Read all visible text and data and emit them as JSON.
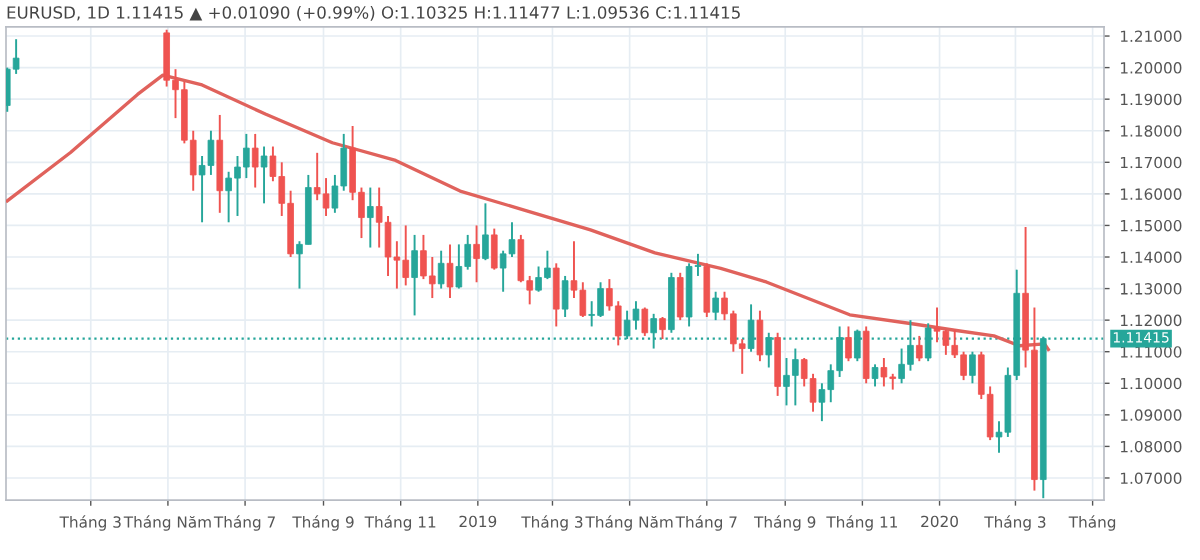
{
  "chart_data": {
    "type": "candlestick",
    "title": "EURUSD, 1D 1.11415 ▲ +0.01090 (+0.99%) O:1.10325 H:1.11477 L:1.09536 C:1.11415",
    "colors": [
      "#26a69a",
      "#26a69a",
      "#ef5350",
      "#ef5350",
      "#ef5350",
      "#ef5350",
      "#26a69a",
      "#26a69a",
      "#ef5350",
      "#26a69a",
      "#26a69a",
      "#26a69a",
      "#ef5350",
      "#26a69a",
      "#ef5350",
      "#ef5350",
      "#ef5350",
      "#26a69a",
      "#26a69a",
      "#ef5350",
      "#ef5350",
      "#26a69a",
      "#26a69a",
      "#ef5350",
      "#ef5350",
      "#26a69a",
      "#ef5350",
      "#ef5350",
      "#ef5350",
      "#ef5350",
      "#26a69a",
      "#ef5350",
      "#ef5350",
      "#26a69a",
      "#ef5350",
      "#26a69a",
      "#26a69a",
      "#ef5350",
      "#26a69a",
      "#ef5350",
      "#26a69a",
      "#26a69a",
      "#ef5350",
      "#ef5350",
      "#26a69a",
      "#26a69a",
      "#ef5350",
      "#26a69a",
      "#ef5350",
      "#ef5350",
      "#26a69a",
      "#26a69a",
      "#ef5350",
      "#ef5350",
      "#26a69a",
      "#26a69a",
      "#ef5350",
      "#26a69a",
      "#ef5350",
      "#26a69a",
      "#ef5350",
      "#26a69a",
      "#26a69a",
      "#ef5350",
      "#26a69a",
      "#ef5350",
      "#ef5350",
      "#ef5350",
      "#26a69a",
      "#ef5350",
      "#26a69a",
      "#ef5350",
      "#26a69a",
      "#26a69a",
      "#ef5350",
      "#ef5350",
      "#26a69a",
      "#26a69a",
      "#26a69a",
      "#ef5350",
      "#26a69a",
      "#ef5350",
      "#26a69a",
      "#ef5350",
      "#ef5350",
      "#26a69a",
      "#26a69a",
      "#ef5350",
      "#26a69a",
      "#ef5350",
      "#ef5350",
      "#ef5350",
      "#ef5350",
      "#26a69a",
      "#ef5350",
      "#ef5350",
      "#26a69a",
      "#26a69a",
      "#26a69a",
      "#ef5350",
      "#ef5350",
      "#26a69a"
    ],
    "x": [
      "2017-12-25",
      "2018-01-01",
      "2018-04-30",
      "2018-05-07",
      "2018-05-14",
      "2018-05-21",
      "2018-05-28",
      "2018-06-04",
      "2018-06-11",
      "2018-06-18",
      "2018-06-25",
      "2018-07-02",
      "2018-07-09",
      "2018-07-16",
      "2018-07-23",
      "2018-07-30",
      "2018-08-06",
      "2018-08-13",
      "2018-08-20",
      "2018-08-27",
      "2018-09-03",
      "2018-09-10",
      "2018-09-17",
      "2018-09-24",
      "2018-10-01",
      "2018-10-08",
      "2018-10-15",
      "2018-10-22",
      "2018-10-29",
      "2018-11-05",
      "2018-11-12",
      "2018-11-19",
      "2018-11-26",
      "2018-12-03",
      "2018-12-10",
      "2018-12-17",
      "2018-12-24",
      "2018-12-31",
      "2019-01-07",
      "2019-01-14",
      "2019-01-21",
      "2019-01-28",
      "2019-02-04",
      "2019-02-11",
      "2019-02-18",
      "2019-02-25",
      "2019-03-04",
      "2019-03-11",
      "2019-03-18",
      "2019-03-25",
      "2019-04-01",
      "2019-04-08",
      "2019-04-15",
      "2019-04-22",
      "2019-04-29",
      "2019-05-06",
      "2019-05-13",
      "2019-05-20",
      "2019-05-27",
      "2019-06-03",
      "2019-06-10",
      "2019-06-17",
      "2019-06-24",
      "2019-07-01",
      "2019-07-08",
      "2019-07-15",
      "2019-07-22",
      "2019-07-29",
      "2019-08-05",
      "2019-08-12",
      "2019-08-19",
      "2019-08-26",
      "2019-09-02",
      "2019-09-09",
      "2019-09-16",
      "2019-09-23",
      "2019-09-30",
      "2019-10-07",
      "2019-10-14",
      "2019-10-21",
      "2019-10-28",
      "2019-11-04",
      "2019-11-11",
      "2019-11-18",
      "2019-11-25",
      "2019-12-02",
      "2019-12-09",
      "2019-12-16",
      "2019-12-23",
      "2019-12-30",
      "2020-01-06",
      "2020-01-13",
      "2020-01-20",
      "2020-01-27",
      "2020-02-03",
      "2020-02-10",
      "2020-02-17",
      "2020-02-24",
      "2020-03-02",
      "2020-03-09",
      "2020-03-16",
      "2020-03-23"
    ],
    "ohlc": [
      [
        1.188,
        1.2,
        1.186,
        1.1995
      ],
      [
        1.1995,
        1.209,
        1.198,
        1.203
      ],
      [
        1.211,
        1.212,
        1.194,
        1.196
      ],
      [
        1.196,
        1.1995,
        1.184,
        1.193
      ],
      [
        1.193,
        1.1955,
        1.176,
        1.177
      ],
      [
        1.177,
        1.18,
        1.161,
        1.166
      ],
      [
        1.166,
        1.172,
        1.151,
        1.169
      ],
      [
        1.169,
        1.18,
        1.166,
        1.177
      ],
      [
        1.177,
        1.185,
        1.154,
        1.161
      ],
      [
        1.161,
        1.167,
        1.151,
        1.165
      ],
      [
        1.165,
        1.172,
        1.153,
        1.1685
      ],
      [
        1.1685,
        1.179,
        1.165,
        1.1745
      ],
      [
        1.1745,
        1.179,
        1.162,
        1.1685
      ],
      [
        1.1685,
        1.175,
        1.157,
        1.172
      ],
      [
        1.172,
        1.175,
        1.164,
        1.1655
      ],
      [
        1.1655,
        1.17,
        1.153,
        1.157
      ],
      [
        1.157,
        1.161,
        1.14,
        1.141
      ],
      [
        1.141,
        1.145,
        1.13,
        1.144
      ],
      [
        1.144,
        1.166,
        1.144,
        1.162
      ],
      [
        1.162,
        1.173,
        1.158,
        1.16
      ],
      [
        1.16,
        1.165,
        1.153,
        1.1555
      ],
      [
        1.1555,
        1.166,
        1.154,
        1.1625
      ],
      [
        1.1625,
        1.179,
        1.161,
        1.1745
      ],
      [
        1.1745,
        1.1815,
        1.158,
        1.1605
      ],
      [
        1.1605,
        1.162,
        1.146,
        1.1525
      ],
      [
        1.1525,
        1.162,
        1.143,
        1.156
      ],
      [
        1.156,
        1.162,
        1.143,
        1.151
      ],
      [
        1.151,
        1.153,
        1.134,
        1.14
      ],
      [
        1.14,
        1.145,
        1.13,
        1.139
      ],
      [
        1.139,
        1.15,
        1.131,
        1.1335
      ],
      [
        1.1335,
        1.147,
        1.1215,
        1.142
      ],
      [
        1.142,
        1.147,
        1.133,
        1.134
      ],
      [
        1.134,
        1.14,
        1.127,
        1.1315
      ],
      [
        1.1315,
        1.142,
        1.13,
        1.138
      ],
      [
        1.138,
        1.144,
        1.127,
        1.1305
      ],
      [
        1.1305,
        1.144,
        1.13,
        1.137
      ],
      [
        1.137,
        1.147,
        1.136,
        1.144
      ],
      [
        1.144,
        1.15,
        1.132,
        1.1395
      ],
      [
        1.1395,
        1.157,
        1.139,
        1.147
      ],
      [
        1.147,
        1.149,
        1.136,
        1.1365
      ],
      [
        1.1365,
        1.142,
        1.129,
        1.141
      ],
      [
        1.141,
        1.151,
        1.14,
        1.1455
      ],
      [
        1.1455,
        1.147,
        1.132,
        1.1325
      ],
      [
        1.1325,
        1.134,
        1.125,
        1.1295
      ],
      [
        1.1295,
        1.137,
        1.129,
        1.1335
      ],
      [
        1.1335,
        1.142,
        1.133,
        1.1365
      ],
      [
        1.1365,
        1.138,
        1.118,
        1.1235
      ],
      [
        1.1235,
        1.134,
        1.121,
        1.1325
      ],
      [
        1.1325,
        1.145,
        1.127,
        1.1295
      ],
      [
        1.1295,
        1.132,
        1.121,
        1.1215
      ],
      [
        1.1215,
        1.126,
        1.118,
        1.1215
      ],
      [
        1.1215,
        1.132,
        1.121,
        1.13
      ],
      [
        1.13,
        1.133,
        1.123,
        1.1245
      ],
      [
        1.1245,
        1.126,
        1.112,
        1.115
      ],
      [
        1.115,
        1.123,
        1.114,
        1.12
      ],
      [
        1.12,
        1.126,
        1.117,
        1.1235
      ],
      [
        1.1235,
        1.124,
        1.115,
        1.116
      ],
      [
        1.116,
        1.122,
        1.111,
        1.1205
      ],
      [
        1.1205,
        1.121,
        1.114,
        1.117
      ],
      [
        1.117,
        1.135,
        1.116,
        1.1335
      ],
      [
        1.1335,
        1.135,
        1.12,
        1.121
      ],
      [
        1.121,
        1.138,
        1.118,
        1.137
      ],
      [
        1.137,
        1.141,
        1.134,
        1.137
      ],
      [
        1.137,
        1.138,
        1.121,
        1.1225
      ],
      [
        1.1225,
        1.129,
        1.12,
        1.127
      ],
      [
        1.127,
        1.129,
        1.12,
        1.122
      ],
      [
        1.122,
        1.123,
        1.11,
        1.1125
      ],
      [
        1.1125,
        1.114,
        1.103,
        1.111
      ],
      [
        1.111,
        1.125,
        1.11,
        1.12
      ],
      [
        1.12,
        1.123,
        1.107,
        1.109
      ],
      [
        1.109,
        1.116,
        1.105,
        1.1145
      ],
      [
        1.1145,
        1.116,
        1.096,
        1.099
      ],
      [
        1.099,
        1.108,
        1.093,
        1.1025
      ],
      [
        1.1025,
        1.111,
        1.093,
        1.1075
      ],
      [
        1.1075,
        1.108,
        1.099,
        1.1015
      ],
      [
        1.1015,
        1.103,
        1.091,
        1.094
      ],
      [
        1.094,
        1.1,
        1.088,
        1.098
      ],
      [
        1.098,
        1.106,
        1.094,
        1.104
      ],
      [
        1.104,
        1.118,
        1.102,
        1.1145
      ],
      [
        1.1145,
        1.118,
        1.107,
        1.108
      ],
      [
        1.108,
        1.117,
        1.107,
        1.1165
      ],
      [
        1.1165,
        1.118,
        1.1,
        1.1015
      ],
      [
        1.1015,
        1.106,
        1.099,
        1.105
      ],
      [
        1.105,
        1.108,
        1.099,
        1.102
      ],
      [
        1.102,
        1.103,
        1.098,
        1.1015
      ],
      [
        1.1015,
        1.111,
        1.1,
        1.106
      ],
      [
        1.106,
        1.12,
        1.104,
        1.112
      ],
      [
        1.112,
        1.115,
        1.107,
        1.108
      ],
      [
        1.108,
        1.119,
        1.107,
        1.1175
      ],
      [
        1.1175,
        1.124,
        1.113,
        1.1165
      ],
      [
        1.1165,
        1.117,
        1.109,
        1.112
      ],
      [
        1.112,
        1.117,
        1.108,
        1.109
      ],
      [
        1.109,
        1.11,
        1.101,
        1.1025
      ],
      [
        1.1025,
        1.11,
        1.1,
        1.109
      ],
      [
        1.109,
        1.11,
        1.095,
        1.0965
      ],
      [
        1.0965,
        1.099,
        1.082,
        1.083
      ],
      [
        1.083,
        1.088,
        1.078,
        1.0845
      ],
      [
        1.0845,
        1.105,
        1.083,
        1.1025
      ],
      [
        1.1025,
        1.136,
        1.101,
        1.1285
      ],
      [
        1.1285,
        1.1495,
        1.105,
        1.1105
      ],
      [
        1.1105,
        1.124,
        1.066,
        1.0695
      ],
      [
        1.0695,
        1.11477,
        1.0636,
        1.11415
      ]
    ],
    "series": [
      {
        "type": "line",
        "color": "#e0625c",
        "x": [
          "2017-12-25",
          "2018-02-13",
          "2018-04-07",
          "2018-04-27",
          "2018-05-28",
          "2018-07-17",
          "2018-09-08",
          "2018-10-28",
          "2018-12-18",
          "2019-02-08",
          "2019-03-31",
          "2019-05-21",
          "2019-07-12",
          "2019-08-17",
          "2019-10-22",
          "2019-12-13",
          "2020-01-13",
          "2020-02-13",
          "2020-03-04",
          "2020-03-24",
          "2020-03-27"
        ],
        "values": [
          1.1578,
          1.1731,
          1.1915,
          1.1976,
          1.1945,
          1.1853,
          1.1762,
          1.1706,
          1.1609,
          1.1547,
          1.1486,
          1.1413,
          1.1364,
          1.1321,
          1.1217,
          1.1187,
          1.1168,
          1.115,
          1.1119,
          1.1125,
          1.1107
        ]
      }
    ],
    "ref_lines": [
      {
        "axis": "y",
        "value": 1.11415,
        "label": "1.11415",
        "color": "#26a69a",
        "line_style": "dotted"
      }
    ],
    "xlim": [
      "2017-12-24",
      "2020-05-10"
    ],
    "xticks": [
      {
        "value": "2018-03-01",
        "label": "Tháng 3"
      },
      {
        "value": "2018-05-01",
        "label": "Tháng Năm"
      },
      {
        "value": "2018-07-01",
        "label": "Tháng 7"
      },
      {
        "value": "2018-09-01",
        "label": "Tháng 9"
      },
      {
        "value": "2018-11-01",
        "label": "Tháng 11"
      },
      {
        "value": "2019-01-01",
        "label": "2019"
      },
      {
        "value": "2019-03-01",
        "label": "Tháng 3"
      },
      {
        "value": "2019-05-01",
        "label": "Tháng Năm"
      },
      {
        "value": "2019-07-01",
        "label": "Tháng 7"
      },
      {
        "value": "2019-09-01",
        "label": "Tháng 9"
      },
      {
        "value": "2019-11-01",
        "label": "Tháng 11"
      },
      {
        "value": "2020-01-01",
        "label": "2020"
      },
      {
        "value": "2020-03-01",
        "label": "Tháng 3"
      },
      {
        "value": "2020-05-01",
        "label": "Tháng"
      }
    ],
    "ylim": [
      1.063,
      1.2129
    ],
    "yticks": [
      {
        "value": 1.07,
        "label": "1.07000"
      },
      {
        "value": 1.08,
        "label": "1.08000"
      },
      {
        "value": 1.09,
        "label": "1.09000"
      },
      {
        "value": 1.1,
        "label": "1.10000"
      },
      {
        "value": 1.11,
        "label": "1.11000"
      },
      {
        "value": 1.12,
        "label": "1.12000"
      },
      {
        "value": 1.13,
        "label": "1.13000"
      },
      {
        "value": 1.14,
        "label": "1.14000"
      },
      {
        "value": 1.15,
        "label": "1.15000"
      },
      {
        "value": 1.16,
        "label": "1.16000"
      },
      {
        "value": 1.17,
        "label": "1.17000"
      },
      {
        "value": 1.18,
        "label": "1.18000"
      },
      {
        "value": 1.19,
        "label": "1.19000"
      },
      {
        "value": 1.2,
        "label": "1.20000"
      },
      {
        "value": 1.21,
        "label": "1.21000"
      }
    ],
    "grid": true
  }
}
